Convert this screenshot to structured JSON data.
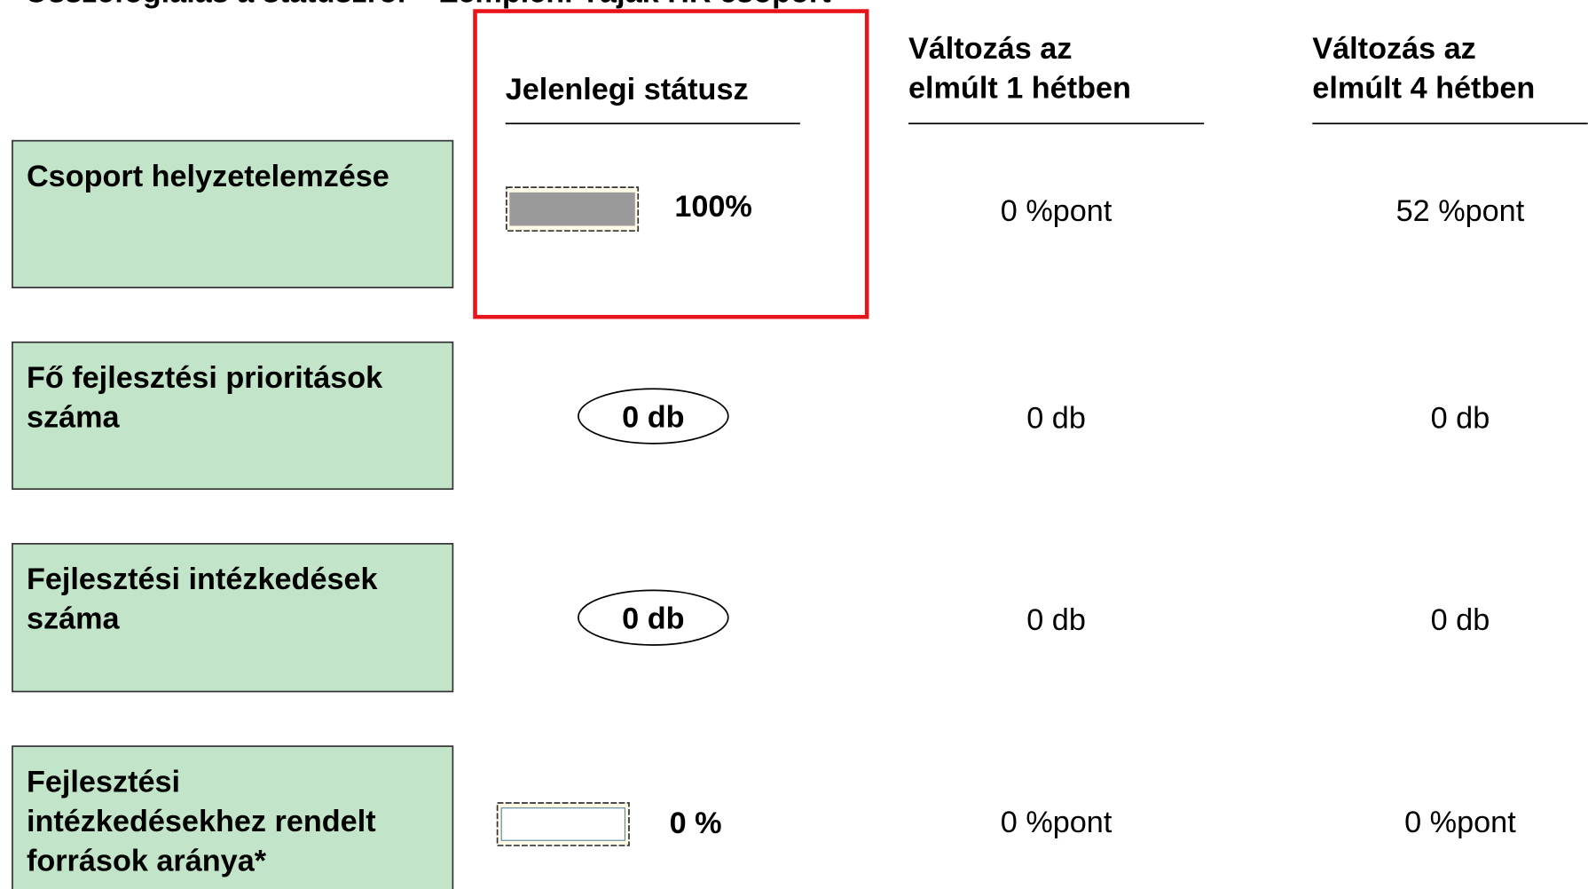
{
  "header": {
    "title": "Összefoglalás a státuszról – Zempléni Tájak HR csoport"
  },
  "columns": [
    [
      "Jelenlegi státusz"
    ],
    [
      "Változás az",
      "elmúlt 1 hétben"
    ],
    [
      "Változás az",
      "elmúlt 4 hétben"
    ]
  ],
  "rows": [
    {
      "label": [
        "Csoport helyzetelemzése"
      ],
      "status": "100%",
      "change_1w": "0 %pont",
      "change_4w": "52 %pont"
    },
    {
      "label": [
        "Fő fejlesztési prioritások",
        "száma"
      ],
      "status": "0 db",
      "change_1w": "0 db",
      "change_4w": "0 db"
    },
    {
      "label": [
        "Fejlesztési intézkedések",
        "száma"
      ],
      "status": "0 db",
      "change_1w": "0 db",
      "change_4w": "0 db"
    },
    {
      "label": [
        "Fejlesztési",
        "intézkedésekhez rendelt",
        "források aránya*"
      ],
      "status": "0 %",
      "change_1w": "0 %pont",
      "change_4w": "0 %pont"
    }
  ]
}
